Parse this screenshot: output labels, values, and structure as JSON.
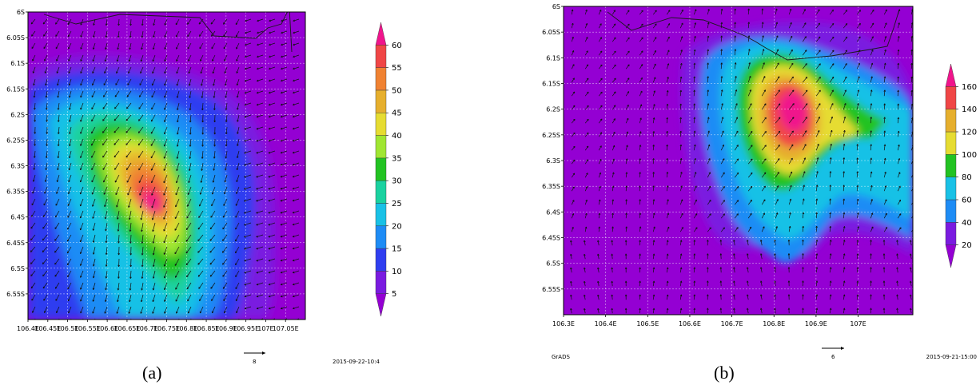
{
  "panels": [
    {
      "caption": "(a)",
      "timestamp": "2015-09-22-10:4",
      "vector_label": "8",
      "logo": "",
      "lon_ticks": [
        "106.4E",
        "106.45E",
        "106.5E",
        "106.55E",
        "106.6E",
        "106.65E",
        "106.7E",
        "106.75E",
        "106.8E",
        "106.85E",
        "106.9E",
        "106.95E",
        "107E",
        "107.05E"
      ],
      "lat_ticks": [
        "6S",
        "6.05S",
        "6.1S",
        "6.15S",
        "6.2S",
        "6.25S",
        "6.3S",
        "6.35S",
        "6.4S",
        "6.45S",
        "6.5S",
        "6.55S"
      ],
      "colorbar": [
        "5",
        "10",
        "15",
        "20",
        "25",
        "30",
        "35",
        "40",
        "45",
        "50",
        "55",
        "60"
      ],
      "colors": [
        "#9400d3",
        "#7a1be0",
        "#2f3ef0",
        "#1e8cf5",
        "#19c1e6",
        "#1ad2a0",
        "#22c322",
        "#a0e632",
        "#e6dc32",
        "#e6af2d",
        "#f08232",
        "#f04646",
        "#f0148c"
      ]
    },
    {
      "caption": "(b)",
      "timestamp": "2015-09-21-15:00",
      "vector_label": "6",
      "logo": "GrADS",
      "lon_ticks": [
        "106.3E",
        "106.4E",
        "106.5E",
        "106.6E",
        "106.7E",
        "106.8E",
        "106.9E",
        "107E"
      ],
      "lat_ticks": [
        "6S",
        "6.05S",
        "6.1S",
        "6.15S",
        "6.2S",
        "6.25S",
        "6.3S",
        "6.35S",
        "6.4S",
        "6.45S",
        "6.5S",
        "6.55S"
      ],
      "colorbar": [
        "20",
        "40",
        "60",
        "80",
        "100",
        "120",
        "140",
        "160"
      ],
      "colors": [
        "#9400d3",
        "#7a1be0",
        "#1e8cf5",
        "#19c1e6",
        "#22c322",
        "#e6dc32",
        "#e6af2d",
        "#f04646",
        "#f0148c"
      ]
    }
  ]
}
